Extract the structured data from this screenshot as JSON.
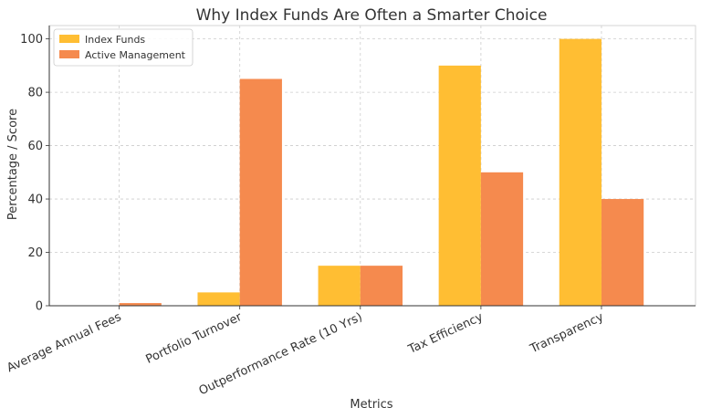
{
  "chart_data": {
    "type": "bar",
    "title": "Why Index Funds Are Often a Smarter Choice",
    "xlabel": "Metrics",
    "ylabel": "Percentage / Score",
    "categories": [
      "Average Annual Fees",
      "Portfolio Turnover",
      "Outperformance Rate (10 Yrs)",
      "Tax Efficiency",
      "Transparency"
    ],
    "series": [
      {
        "name": "Index Funds",
        "values": [
          0.1,
          5,
          15,
          90,
          100
        ],
        "color": "#FFBE33"
      },
      {
        "name": "Active Management",
        "values": [
          1,
          85,
          15,
          50,
          40
        ],
        "color": "#F58A4E"
      }
    ],
    "ylim": [
      0,
      105
    ],
    "yticks": [
      0,
      20,
      40,
      60,
      80,
      100
    ],
    "grid": true,
    "legend_position": "top-left"
  }
}
